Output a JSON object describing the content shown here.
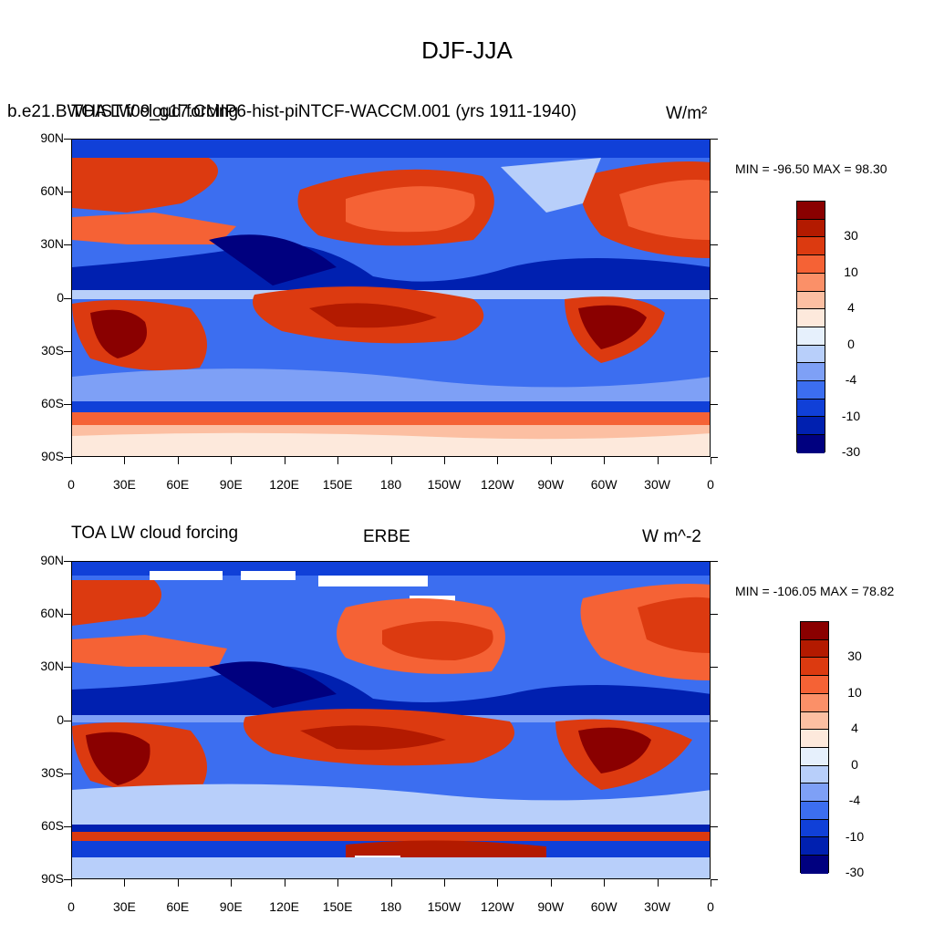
{
  "main_title": "DJF-JJA",
  "palette": [
    "#00007f",
    "#0020b0",
    "#1040d8",
    "#3c6ef0",
    "#7ea0f6",
    "#b8cffa",
    "#e6f0fc",
    "#fde9dc",
    "#fcbfa2",
    "#fb9068",
    "#f56235",
    "#dc3a10",
    "#b31a00",
    "#8a0000"
  ],
  "colorbar_labels": [
    "30",
    "10",
    "4",
    "0",
    "-4",
    "-10",
    "-30"
  ],
  "lat_labels": [
    "90N",
    "60N",
    "30N",
    "0",
    "30S",
    "60S",
    "90S"
  ],
  "lon_labels": [
    "0",
    "30E",
    "60E",
    "90E",
    "120E",
    "150E",
    "180",
    "150W",
    "120W",
    "90W",
    "60W",
    "30W",
    "0"
  ],
  "panels": [
    {
      "title_left": "TOA LW cloud forcing",
      "title_center": "b.e21.BWHIST.f09_g17.CMIP6-hist-piNTCF-WACCM.001 (yrs 1911-1940)",
      "title_right": "W/m²",
      "min_max": "MIN = -96.50 MAX =  98.30"
    },
    {
      "title_left": "TOA LW cloud forcing",
      "title_center": "ERBE",
      "title_right": "W m^-2",
      "min_max": "MIN = -106.05 MAX =  78.82"
    }
  ]
}
